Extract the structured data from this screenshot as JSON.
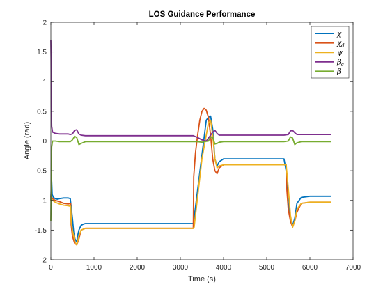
{
  "chart_data": {
    "type": "line",
    "title": "LOS Guidance Performance",
    "xlabel": "Time (s)",
    "ylabel": "Angle (rad)",
    "xlim": [
      0,
      7000
    ],
    "ylim": [
      -2,
      2
    ],
    "xticks": [
      0,
      1000,
      2000,
      3000,
      4000,
      5000,
      6000,
      7000
    ],
    "yticks": [
      -2,
      -1.5,
      -1,
      -0.5,
      0,
      0.5,
      1,
      1.5,
      2
    ],
    "xtick_labels": [
      "0",
      "1000",
      "2000",
      "3000",
      "4000",
      "5000",
      "6000",
      "7000"
    ],
    "ytick_labels": [
      "-2",
      "-1.5",
      "-1",
      "-0.5",
      "0",
      "0.5",
      "1",
      "1.5",
      "2"
    ],
    "grid": false,
    "legend_position": "top-right",
    "series": [
      {
        "name": "χ",
        "color": "#0072BD",
        "x": [
          0,
          15,
          30,
          60,
          100,
          150,
          200,
          300,
          400,
          450,
          500,
          530,
          560,
          600,
          620,
          650,
          700,
          750,
          800,
          1000,
          1500,
          2000,
          2500,
          3000,
          3300,
          3310,
          3600,
          3650,
          3700,
          3750,
          3800,
          3850,
          3900,
          4000,
          4500,
          5000,
          5400,
          5450,
          5500,
          5550,
          5600,
          5650,
          5700,
          5800,
          6000,
          6500
        ],
        "y": [
          -1.0,
          -0.6,
          -0.9,
          -0.95,
          -0.97,
          -0.98,
          -0.97,
          -0.96,
          -0.96,
          -0.97,
          -1.3,
          -1.55,
          -1.65,
          -1.7,
          -1.6,
          -1.5,
          -1.42,
          -1.4,
          -1.39,
          -1.39,
          -1.39,
          -1.39,
          -1.39,
          -1.39,
          -1.39,
          -1.35,
          0.35,
          0.4,
          0.42,
          0.2,
          -0.3,
          -0.42,
          -0.35,
          -0.3,
          -0.3,
          -0.3,
          -0.3,
          -0.5,
          -1.05,
          -1.3,
          -1.42,
          -1.3,
          -1.05,
          -0.95,
          -0.93,
          -0.93
        ]
      },
      {
        "name": "χd",
        "color": "#D95319",
        "x": [
          0,
          10,
          20,
          40,
          100,
          200,
          300,
          400,
          460,
          470,
          500,
          550,
          600,
          650,
          700,
          800,
          1000,
          2000,
          3000,
          3300,
          3310,
          3350,
          3400,
          3450,
          3500,
          3550,
          3600,
          3650,
          3700,
          3750,
          3800,
          3850,
          3900,
          4000,
          4500,
          5000,
          5450,
          5460,
          5500,
          5550,
          5600,
          5650,
          5700,
          5800,
          6000,
          6500
        ],
        "y": [
          -0.95,
          -0.85,
          -0.95,
          -0.97,
          -1.0,
          -1.02,
          -1.05,
          -1.06,
          -1.05,
          -1.4,
          -1.6,
          -1.72,
          -1.75,
          -1.65,
          -1.5,
          -1.47,
          -1.47,
          -1.47,
          -1.47,
          -1.47,
          -0.6,
          -0.2,
          0.1,
          0.35,
          0.5,
          0.55,
          0.52,
          0.4,
          0.1,
          -0.3,
          -0.5,
          -0.55,
          -0.45,
          -0.4,
          -0.4,
          -0.4,
          -0.4,
          -0.75,
          -1.15,
          -1.35,
          -1.45,
          -1.35,
          -1.2,
          -1.05,
          -1.03,
          -1.03
        ]
      },
      {
        "name": "ψ",
        "color": "#EDB120",
        "x": [
          0,
          10,
          20,
          40,
          100,
          200,
          300,
          400,
          460,
          470,
          500,
          560,
          600,
          620,
          650,
          700,
          800,
          1000,
          2000,
          3000,
          3300,
          3320,
          3500,
          3650,
          3700,
          3750,
          3800,
          3850,
          3900,
          4000,
          4500,
          5000,
          5450,
          5500,
          5550,
          5600,
          5650,
          5700,
          5800,
          6000,
          6500
        ],
        "y": [
          -1.0,
          -0.9,
          -0.98,
          -1.0,
          -1.03,
          -1.06,
          -1.08,
          -1.09,
          -1.1,
          -1.35,
          -1.5,
          -1.7,
          -1.75,
          -1.7,
          -1.6,
          -1.5,
          -1.47,
          -1.47,
          -1.47,
          -1.47,
          -1.47,
          -1.45,
          -0.3,
          0.3,
          0.35,
          0.1,
          -0.3,
          -0.45,
          -0.42,
          -0.4,
          -0.4,
          -0.4,
          -0.4,
          -0.8,
          -1.25,
          -1.45,
          -1.35,
          -1.15,
          -1.05,
          -1.03,
          -1.03
        ]
      },
      {
        "name": "βc",
        "color": "#7E2F8E",
        "x": [
          0,
          5,
          10,
          20,
          40,
          100,
          200,
          300,
          400,
          450,
          500,
          550,
          600,
          650,
          700,
          800,
          1000,
          2000,
          3000,
          3300,
          3400,
          3500,
          3600,
          3700,
          3750,
          3800,
          3850,
          3900,
          4000,
          4500,
          5000,
          5400,
          5500,
          5550,
          5600,
          5650,
          5700,
          5800,
          6000,
          6500
        ],
        "y": [
          1.7,
          1.4,
          0.6,
          0.25,
          0.15,
          0.13,
          0.12,
          0.12,
          0.12,
          0.11,
          0.12,
          0.18,
          0.19,
          0.12,
          0.1,
          0.09,
          0.09,
          0.09,
          0.09,
          0.09,
          0.06,
          0.02,
          0.0,
          0.1,
          0.15,
          0.18,
          0.13,
          0.1,
          0.1,
          0.1,
          0.1,
          0.1,
          0.11,
          0.17,
          0.18,
          0.14,
          0.11,
          0.11,
          0.11,
          0.11
        ]
      },
      {
        "name": "β",
        "color": "#77AC30",
        "x": [
          0,
          10,
          20,
          40,
          100,
          200,
          300,
          400,
          450,
          500,
          550,
          600,
          650,
          700,
          800,
          1000,
          2000,
          3000,
          3300,
          3400,
          3500,
          3550,
          3650,
          3700,
          3750,
          3800,
          3850,
          3900,
          4000,
          4500,
          5000,
          5400,
          5500,
          5550,
          5600,
          5650,
          5700,
          5800,
          6000,
          6500
        ],
        "y": [
          -1.35,
          -0.6,
          -0.1,
          0.0,
          0.0,
          -0.01,
          -0.01,
          -0.01,
          -0.01,
          0.02,
          0.08,
          0.06,
          -0.06,
          -0.04,
          -0.01,
          -0.01,
          -0.01,
          -0.01,
          -0.01,
          -0.01,
          -0.02,
          -0.01,
          0.0,
          0.07,
          0.06,
          -0.05,
          -0.04,
          -0.02,
          -0.01,
          -0.01,
          -0.01,
          -0.01,
          0.0,
          0.07,
          0.05,
          -0.06,
          -0.03,
          -0.01,
          -0.01,
          -0.01
        ]
      }
    ]
  },
  "legend_labels": [
    {
      "base": "χ",
      "sub": ""
    },
    {
      "base": "χ",
      "sub": "d"
    },
    {
      "base": "ψ",
      "sub": ""
    },
    {
      "base": "β",
      "sub": "c"
    },
    {
      "base": "β",
      "sub": ""
    }
  ]
}
